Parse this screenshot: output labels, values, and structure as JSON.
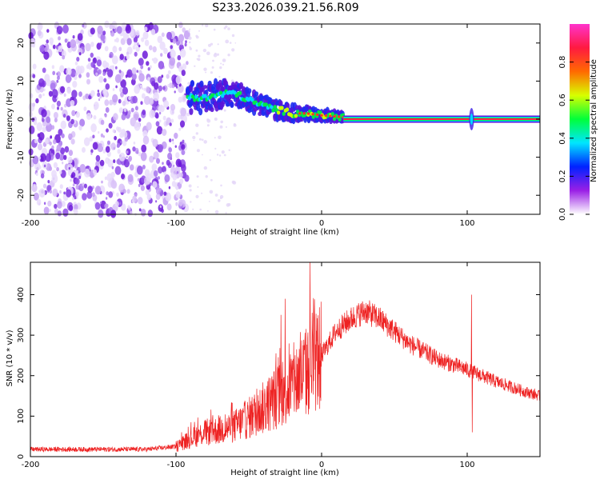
{
  "title": "S233.2026.039.21.56.R09",
  "chart_data": [
    {
      "type": "heatmap",
      "name": "spectrogram",
      "xlabel": "Height of straight line (km)",
      "ylabel": "Frequency (Hz)",
      "xlim": [
        -200,
        150
      ],
      "ylim": [
        -25,
        25
      ],
      "xticks": [
        -200,
        -100,
        0,
        100
      ],
      "yticks": [
        -20,
        -10,
        0,
        10,
        20
      ],
      "colorbar": {
        "label": "Normalized spectral amplitude",
        "range": [
          0,
          1
        ],
        "ticks": [
          0.0,
          0.2,
          0.4,
          0.6,
          0.8
        ],
        "tick_labels": [
          "0.0",
          "0.2",
          "0.4",
          "0.6",
          "0.8"
        ],
        "colors": [
          "#ffffff",
          "#9a1fe6",
          "#0022ff",
          "#00e6ff",
          "#00ff3a",
          "#d8ff00",
          "#ff6a00",
          "#ff1a40",
          "#ff33cc"
        ]
      },
      "noise_region_x": [
        -200,
        -92
      ],
      "signal_track": [
        {
          "x": -92,
          "y": 6
        },
        {
          "x": -80,
          "y": 5.5
        },
        {
          "x": -70,
          "y": 6.5
        },
        {
          "x": -60,
          "y": 7
        },
        {
          "x": -50,
          "y": 5
        },
        {
          "x": -40,
          "y": 3.5
        },
        {
          "x": -30,
          "y": 2.5
        },
        {
          "x": -20,
          "y": 1.5
        },
        {
          "x": -10,
          "y": 1.5
        },
        {
          "x": 0,
          "y": 1
        },
        {
          "x": 8,
          "y": 0.8
        },
        {
          "x": 15,
          "y": 0.5
        }
      ],
      "carrier_line": {
        "x_start": 15,
        "x_end": 150,
        "y": 0
      },
      "spike_x": 103
    },
    {
      "type": "line",
      "name": "snr",
      "xlabel": "Height of straight line (km)",
      "ylabel": "SNR (10 * v/v)",
      "xlim": [
        -200,
        150
      ],
      "ylim": [
        0,
        480
      ],
      "xticks": [
        -200,
        -100,
        0,
        100
      ],
      "yticks": [
        0,
        100,
        200,
        300,
        400
      ],
      "line_color": "#ee2222",
      "envelope": [
        {
          "x": -200,
          "y": 18
        },
        {
          "x": -120,
          "y": 18
        },
        {
          "x": -100,
          "y": 25
        },
        {
          "x": -90,
          "y": 45
        },
        {
          "x": -80,
          "y": 60
        },
        {
          "x": -70,
          "y": 65
        },
        {
          "x": -60,
          "y": 75
        },
        {
          "x": -50,
          "y": 95
        },
        {
          "x": -40,
          "y": 120
        },
        {
          "x": -30,
          "y": 150
        },
        {
          "x": -20,
          "y": 180
        },
        {
          "x": -10,
          "y": 210
        },
        {
          "x": 0,
          "y": 250
        },
        {
          "x": 10,
          "y": 310
        },
        {
          "x": 20,
          "y": 340
        },
        {
          "x": 30,
          "y": 360
        },
        {
          "x": 40,
          "y": 340
        },
        {
          "x": 60,
          "y": 280
        },
        {
          "x": 80,
          "y": 240
        },
        {
          "x": 100,
          "y": 215
        },
        {
          "x": 120,
          "y": 185
        },
        {
          "x": 140,
          "y": 160
        },
        {
          "x": 150,
          "y": 150
        }
      ],
      "peaks": [
        {
          "x": -8,
          "y": 480
        },
        {
          "x": -25,
          "y": 390
        },
        {
          "x": -28,
          "y": 350
        },
        {
          "x": 103,
          "y": 400
        },
        {
          "x": 103.5,
          "y": 60
        }
      ]
    }
  ]
}
